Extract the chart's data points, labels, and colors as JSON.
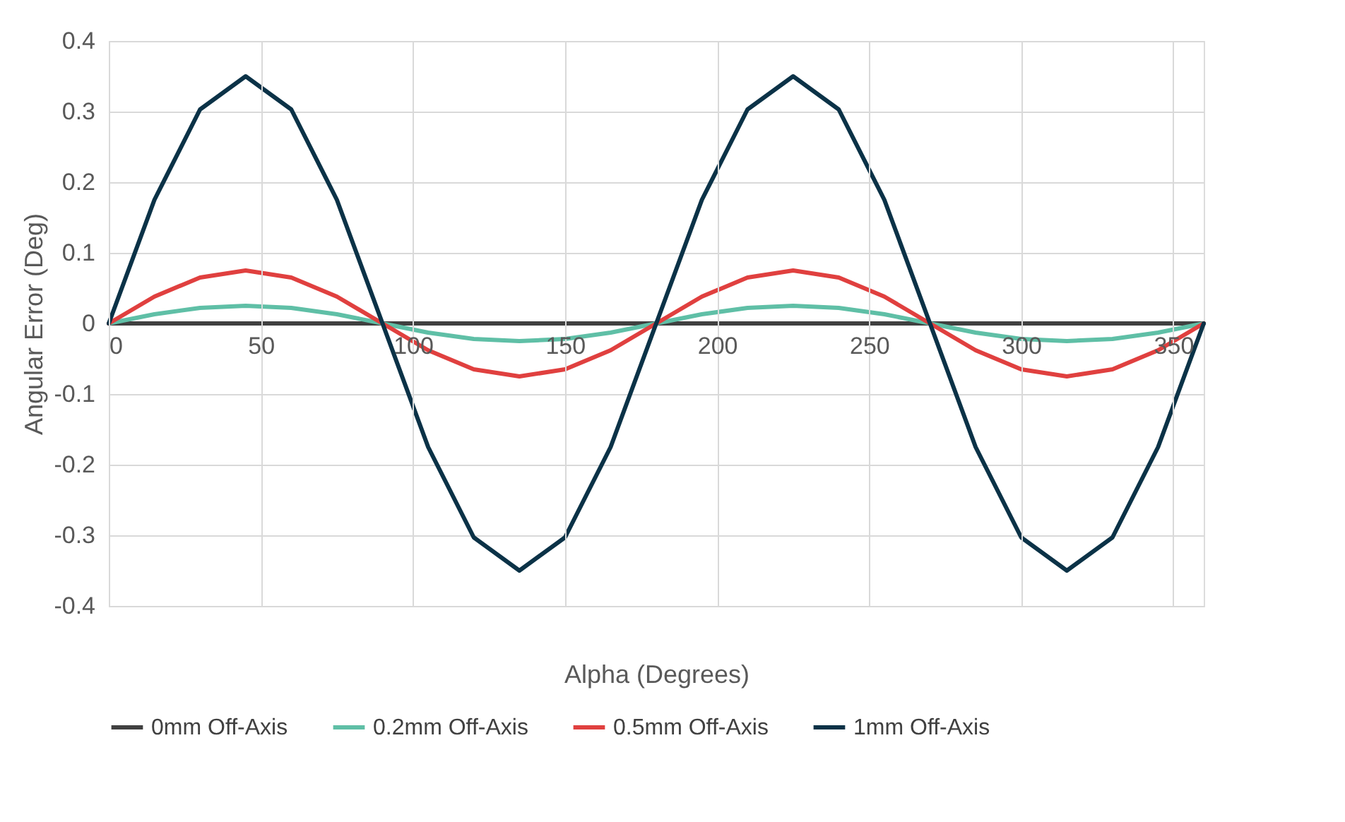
{
  "chart_data": {
    "type": "line",
    "xlabel": "Alpha (Degrees)",
    "ylabel": "Angular Error (Deg)",
    "x": [
      0,
      15,
      30,
      45,
      60,
      75,
      90,
      105,
      120,
      135,
      150,
      165,
      180,
      195,
      210,
      225,
      240,
      255,
      270,
      285,
      300,
      315,
      330,
      345,
      360
    ],
    "xlim": [
      0,
      360
    ],
    "xticks": [
      0,
      50,
      100,
      150,
      200,
      250,
      300,
      350
    ],
    "ylim": [
      -0.4,
      0.4
    ],
    "yticks": [
      {
        "value": -0.4,
        "label": "-0.4"
      },
      {
        "value": -0.3,
        "label": "-0.3"
      },
      {
        "value": -0.2,
        "label": "-0.2"
      },
      {
        "value": -0.1,
        "label": "-0.1"
      },
      0,
      0.1,
      0.2,
      0.3,
      0.4
    ],
    "grid": true,
    "legend": "bottom",
    "line_style": "solid",
    "marker": "none",
    "series": [
      {
        "name": "0mm Off-Axis",
        "color": "#404040",
        "values": [
          0,
          0,
          0,
          0,
          0,
          0,
          0,
          0,
          0,
          0,
          0,
          0,
          0,
          0,
          0,
          0,
          0,
          0,
          0,
          0,
          0,
          0,
          0,
          0,
          0
        ]
      },
      {
        "name": "0.2mm Off-Axis",
        "color": "#5fbfa6",
        "values": [
          0,
          0.013,
          0.022,
          0.025,
          0.022,
          0.013,
          0,
          -0.013,
          -0.022,
          -0.025,
          -0.022,
          -0.013,
          0,
          0.013,
          0.022,
          0.025,
          0.022,
          0.013,
          0,
          -0.013,
          -0.022,
          -0.025,
          -0.022,
          -0.013,
          0
        ]
      },
      {
        "name": "0.5mm Off-Axis",
        "color": "#e0403f",
        "values": [
          0,
          0.038,
          0.065,
          0.075,
          0.065,
          0.038,
          0,
          -0.038,
          -0.065,
          -0.075,
          -0.065,
          -0.038,
          0,
          0.038,
          0.065,
          0.075,
          0.065,
          0.038,
          0,
          -0.038,
          -0.065,
          -0.075,
          -0.065,
          -0.038,
          0
        ]
      },
      {
        "name": "1mm Off-Axis",
        "color": "#0b3247",
        "values": [
          0,
          0.175,
          0.303,
          0.35,
          0.303,
          0.175,
          0,
          -0.175,
          -0.303,
          -0.35,
          -0.303,
          -0.175,
          0,
          0.175,
          0.303,
          0.35,
          0.303,
          0.175,
          0,
          -0.175,
          -0.303,
          -0.35,
          -0.303,
          -0.175,
          0
        ]
      }
    ]
  }
}
